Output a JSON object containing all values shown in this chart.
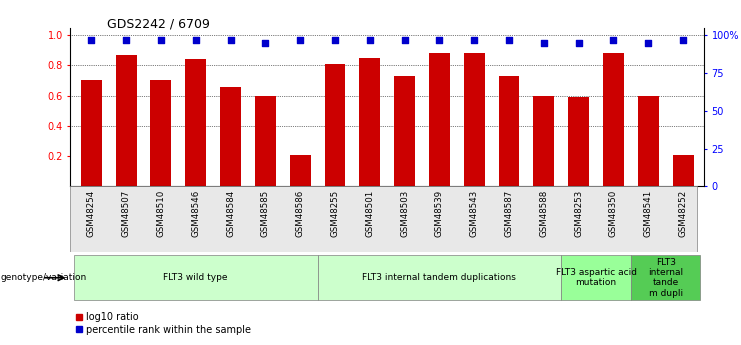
{
  "title": "GDS2242 / 6709",
  "samples": [
    "GSM48254",
    "GSM48507",
    "GSM48510",
    "GSM48546",
    "GSM48584",
    "GSM48585",
    "GSM48586",
    "GSM48255",
    "GSM48501",
    "GSM48503",
    "GSM48539",
    "GSM48543",
    "GSM48587",
    "GSM48588",
    "GSM48253",
    "GSM48350",
    "GSM48541",
    "GSM48252"
  ],
  "log10_ratio": [
    0.7,
    0.87,
    0.7,
    0.84,
    0.66,
    0.6,
    0.21,
    0.81,
    0.85,
    0.73,
    0.88,
    0.88,
    0.73,
    0.6,
    0.59,
    0.88,
    0.6,
    0.21
  ],
  "percentile_rank": [
    0.97,
    0.97,
    0.97,
    0.97,
    0.97,
    0.95,
    0.97,
    0.97,
    0.97,
    0.97,
    0.97,
    0.97,
    0.97,
    0.95,
    0.95,
    0.97,
    0.95,
    0.97
  ],
  "bar_color": "#cc0000",
  "dot_color": "#0000cc",
  "group_labels": [
    "FLT3 wild type",
    "FLT3 internal tandem duplications",
    "FLT3 aspartic acid\nmutation",
    "FLT3\ninternal\ntande\nm dupli"
  ],
  "group_ranges": [
    [
      0,
      7
    ],
    [
      7,
      14
    ],
    [
      14,
      16
    ],
    [
      16,
      18
    ]
  ],
  "group_colors": [
    "#ccffcc",
    "#ccffcc",
    "#99ff99",
    "#55cc55"
  ],
  "group_label": "genotype/variation",
  "legend_log10": "log10 ratio",
  "legend_pct": "percentile rank within the sample",
  "yticks_left": [
    0.2,
    0.4,
    0.6,
    0.8,
    1.0
  ],
  "yticks_right": [
    0,
    25,
    50,
    75,
    100
  ],
  "ylim": [
    0.0,
    1.05
  ],
  "background_color": "#ffffff"
}
